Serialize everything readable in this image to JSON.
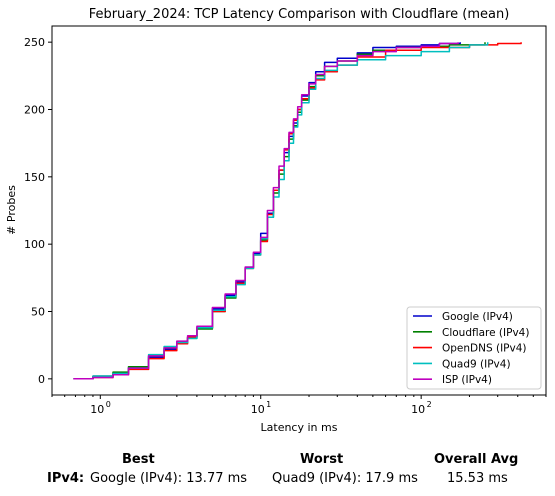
{
  "chart_data": {
    "type": "line",
    "title": "February_2024: TCP Latency Comparison with Cloudflare (mean)",
    "xlabel": "Latency in ms",
    "ylabel": "# Probes",
    "xscale": "log",
    "xlim": [
      0.5,
      600
    ],
    "ylim": [
      -12,
      262
    ],
    "xticks": [
      {
        "value": 1,
        "base": "10",
        "exp": "0"
      },
      {
        "value": 10,
        "base": "10",
        "exp": "1"
      },
      {
        "value": 100,
        "base": "10",
        "exp": "2"
      }
    ],
    "yticks": [
      0,
      50,
      100,
      150,
      200,
      250
    ],
    "grid": false,
    "legend_position": "lower-right",
    "series": [
      {
        "name": "Google (IPv4)",
        "color": "#0000cc",
        "x": [
          0.68,
          0.9,
          1.2,
          1.5,
          2.0,
          2.5,
          3.0,
          3.5,
          4.0,
          5.0,
          6.0,
          7.0,
          8.0,
          9.0,
          10.0,
          11.0,
          12.0,
          13.0,
          14.0,
          15.0,
          16.0,
          17.0,
          18.0,
          20.0,
          22.0,
          25.0,
          30.0,
          40.0,
          50.0,
          70.0,
          100.0,
          130.0,
          175.0
        ],
        "y": [
          0,
          2,
          4,
          8,
          16,
          22,
          27,
          31,
          38,
          52,
          62,
          72,
          83,
          93,
          108,
          123,
          140,
          155,
          168,
          180,
          190,
          200,
          210,
          220,
          228,
          235,
          238,
          242,
          246,
          247,
          248,
          249,
          250
        ]
      },
      {
        "name": "Cloudflare (IPv4)",
        "color": "#008000",
        "x": [
          0.68,
          0.9,
          1.2,
          1.5,
          2.0,
          2.5,
          3.0,
          3.5,
          4.0,
          5.0,
          6.0,
          7.0,
          8.0,
          9.0,
          10.0,
          11.0,
          12.0,
          13.0,
          14.0,
          15.0,
          16.0,
          17.0,
          18.0,
          20.0,
          22.0,
          25.0,
          30.0,
          40.0,
          50.0,
          70.0,
          100.0,
          150.0,
          250.0
        ],
        "y": [
          0,
          2,
          5,
          9,
          17,
          23,
          27,
          30,
          37,
          50,
          60,
          71,
          82,
          92,
          103,
          120,
          138,
          152,
          165,
          178,
          188,
          198,
          207,
          217,
          225,
          232,
          236,
          241,
          244,
          246,
          247,
          248,
          250
        ]
      },
      {
        "name": "OpenDNS (IPv4)",
        "color": "#ff0000",
        "x": [
          0.7,
          0.9,
          1.2,
          1.5,
          2.0,
          2.5,
          3.0,
          3.5,
          4.0,
          5.0,
          6.0,
          7.0,
          8.0,
          9.0,
          10.0,
          11.0,
          12.0,
          13.0,
          14.0,
          15.0,
          16.0,
          17.0,
          18.0,
          20.0,
          22.0,
          25.0,
          30.0,
          40.0,
          60.0,
          100.0,
          200.0,
          300.0,
          420.0
        ],
        "y": [
          0,
          1,
          3,
          7,
          15,
          21,
          26,
          31,
          38,
          50,
          61,
          71,
          82,
          92,
          102,
          122,
          140,
          155,
          170,
          182,
          192,
          200,
          208,
          216,
          222,
          228,
          233,
          239,
          244,
          246,
          248,
          249,
          250
        ]
      },
      {
        "name": "Quad9 (IPv4)",
        "color": "#00bfbf",
        "x": [
          0.7,
          0.9,
          1.2,
          1.5,
          2.0,
          2.5,
          3.0,
          3.5,
          4.0,
          5.0,
          6.0,
          7.0,
          8.0,
          9.0,
          10.0,
          11.0,
          12.0,
          13.0,
          14.0,
          15.0,
          16.0,
          17.0,
          18.0,
          20.0,
          22.0,
          25.0,
          30.0,
          40.0,
          60.0,
          100.0,
          150.0,
          200.0,
          260.0
        ],
        "y": [
          0,
          2,
          4,
          8,
          18,
          24,
          27,
          30,
          38,
          51,
          61,
          70,
          82,
          92,
          104,
          120,
          135,
          148,
          162,
          175,
          187,
          196,
          205,
          215,
          223,
          229,
          233,
          237,
          240,
          243,
          246,
          248,
          250
        ]
      },
      {
        "name": "ISP (IPv4)",
        "color": "#bf00bf",
        "x": [
          0.68,
          0.9,
          1.2,
          1.5,
          2.0,
          2.5,
          3.0,
          3.5,
          4.0,
          5.0,
          6.0,
          7.0,
          8.0,
          9.0,
          10.0,
          11.0,
          12.0,
          13.0,
          14.0,
          15.0,
          16.0,
          17.0,
          18.0,
          20.0,
          22.0,
          25.0,
          30.0,
          40.0,
          50.0,
          70.0,
          100.0,
          130.0,
          170.0
        ],
        "y": [
          0,
          1,
          3,
          8,
          17,
          23,
          28,
          32,
          39,
          53,
          63,
          73,
          83,
          94,
          105,
          125,
          142,
          158,
          171,
          183,
          193,
          202,
          211,
          219,
          226,
          232,
          236,
          240,
          243,
          246,
          247,
          249,
          250
        ]
      }
    ]
  },
  "summary": {
    "best_header": "Best",
    "worst_header": "Worst",
    "avg_header": "Overall Avg",
    "row_label": "IPv4:",
    "best_value": "Google (IPv4): 13.77 ms",
    "worst_value": "Quad9 (IPv4): 17.9 ms",
    "avg_value": "15.53 ms"
  }
}
